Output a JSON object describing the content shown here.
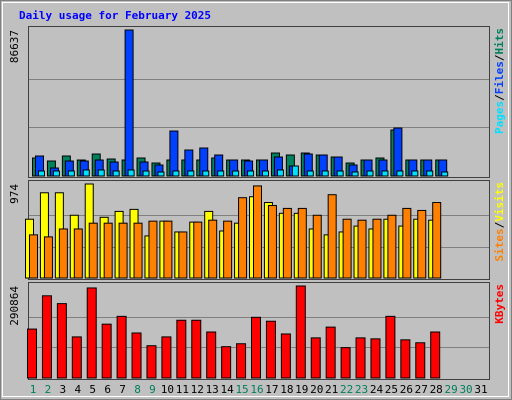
{
  "chart_data": [
    {
      "type": "bar",
      "title": "Daily usage for February 2025",
      "legend_separator": "/",
      "ylim": [
        0,
        86637
      ],
      "yticks": [
        86637
      ],
      "gridlines": [
        28879,
        57758
      ],
      "series": [
        {
          "name": "Pages",
          "color": "#00e0ff",
          "values": [
            2965,
            2965,
            2965,
            3558,
            3558,
            2965,
            3558,
            2965,
            2372,
            2965,
            2965,
            2965,
            2965,
            2965,
            2965,
            2965,
            3558,
            5930,
            2965,
            2965,
            2965,
            2372,
            2965,
            2965,
            2965,
            2965,
            2965,
            2372,
            null,
            null,
            null
          ]
        },
        {
          "name": "Files",
          "color": "#0040ff",
          "values": [
            11860,
            4744,
            8895,
            8895,
            9488,
            8302,
            86637,
            8302,
            6523,
            26685,
            15418,
            16604,
            12453,
            9488,
            8895,
            9488,
            11267,
            5930,
            13046,
            12453,
            11267,
            6523,
            9488,
            9488,
            28464,
            9488,
            9488,
            9488,
            null,
            null,
            null
          ]
        },
        {
          "name": "Hits",
          "color": "#00805c",
          "values": [
            10674,
            8895,
            11860,
            9488,
            13046,
            10081,
            9488,
            10674,
            7709,
            9488,
            9488,
            9488,
            10674,
            9488,
            9488,
            9488,
            13639,
            12453,
            13639,
            12453,
            11267,
            7709,
            9488,
            10674,
            27278,
            9488,
            9488,
            9488,
            null,
            null,
            null
          ]
        }
      ]
    },
    {
      "type": "bar",
      "legend_separator": "/",
      "ylim": [
        0,
        974
      ],
      "yticks": [
        974
      ],
      "gridlines": [
        325,
        649
      ],
      "series": [
        {
          "name": "Sites",
          "color": "#ff8000",
          "values": [
            447,
            426,
            508,
            508,
            568,
            568,
            568,
            568,
            589,
            589,
            477,
            579,
            599,
            589,
            832,
            954,
            751,
            721,
            721,
            650,
            863,
            609,
            599,
            609,
            650,
            721,
            700,
            782,
            null,
            null,
            null
          ]
        },
        {
          "name": "Visits",
          "color": "#ffff00",
          "values": [
            609,
            883,
            883,
            650,
            974,
            629,
            690,
            711,
            436,
            589,
            477,
            579,
            690,
            487,
            568,
            842,
            782,
            670,
            670,
            508,
            447,
            477,
            538,
            508,
            609,
            538,
            609,
            599,
            null,
            null,
            null
          ]
        }
      ]
    },
    {
      "type": "bar",
      "ylim": [
        0,
        290864
      ],
      "yticks": [
        290864
      ],
      "gridlines": [
        96955,
        193909
      ],
      "series": [
        {
          "name": "KBytes",
          "color": "#ff0000",
          "values": [
            154700,
            259896,
            235144,
            129948,
            284648,
            170170,
            194922,
            142324,
            102102,
            129948,
            182546,
            182546,
            145418,
            99008,
            108290,
            191828,
            179452,
            139230,
            290864,
            126854,
            160888,
            95914,
            126854,
            123760,
            194922,
            120666,
            111384,
            145418,
            null,
            null,
            null
          ]
        }
      ],
      "categories": [
        "1",
        "2",
        "3",
        "4",
        "5",
        "6",
        "7",
        "8",
        "9",
        "10",
        "11",
        "12",
        "13",
        "14",
        "15",
        "16",
        "17",
        "18",
        "19",
        "20",
        "21",
        "22",
        "23",
        "24",
        "25",
        "26",
        "27",
        "28",
        "29",
        "30",
        "31"
      ],
      "category_colors": [
        "#00805c",
        "#00805c",
        "#000000",
        "#000000",
        "#000000",
        "#000000",
        "#000000",
        "#00805c",
        "#00805c",
        "#000000",
        "#000000",
        "#000000",
        "#000000",
        "#000000",
        "#00805c",
        "#00805c",
        "#000000",
        "#000000",
        "#000000",
        "#000000",
        "#000000",
        "#00805c",
        "#00805c",
        "#000000",
        "#000000",
        "#000000",
        "#000000",
        "#000000",
        "#00805c",
        "#00805c",
        "#000000"
      ]
    }
  ]
}
